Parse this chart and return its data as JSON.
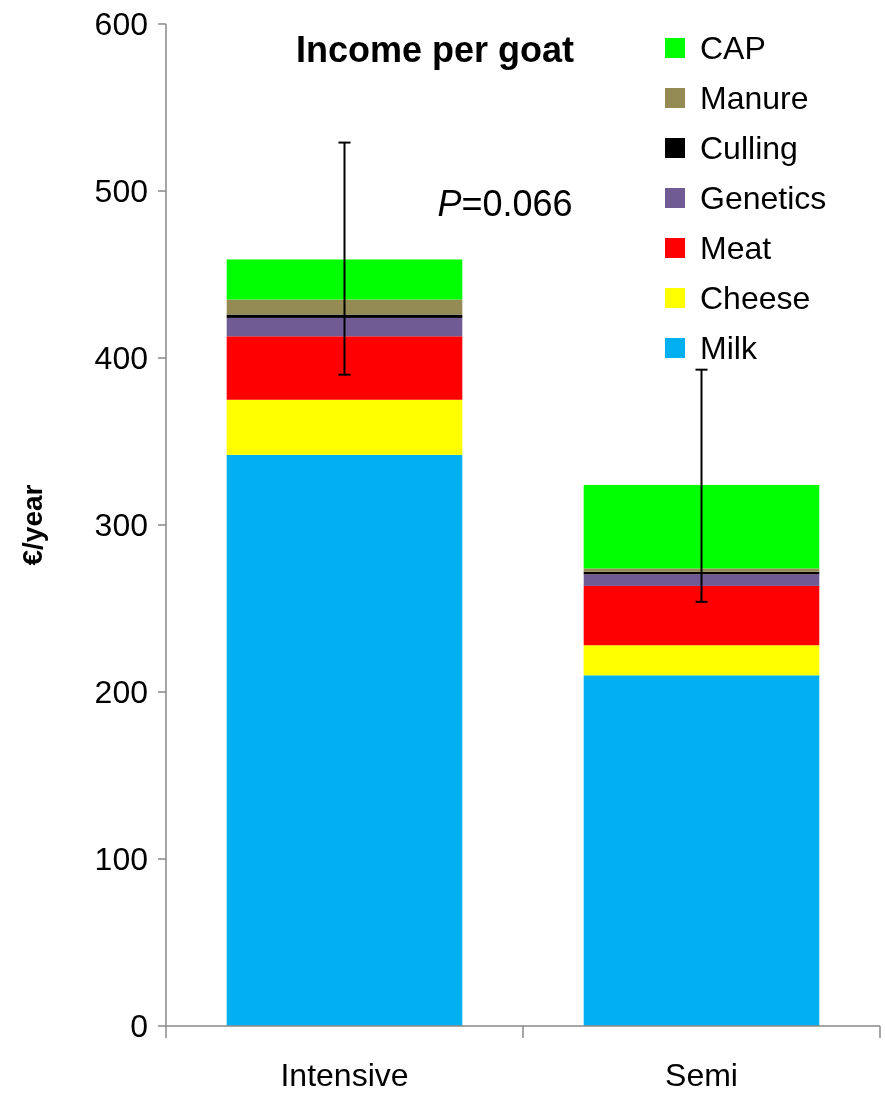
{
  "chart_data": {
    "type": "bar",
    "stacked": true,
    "title": "Income per goat",
    "ylabel": "€/year",
    "categories": [
      "Intensive",
      "Semi"
    ],
    "series": [
      {
        "name": "Milk",
        "color": "#00b0f0",
        "values": [
          342,
          210
        ]
      },
      {
        "name": "Cheese",
        "color": "#ffff00",
        "values": [
          33,
          18
        ]
      },
      {
        "name": "Meat",
        "color": "#ff0000",
        "values": [
          38,
          35.5
        ]
      },
      {
        "name": "Genetics",
        "color": "#715b95",
        "values": [
          11,
          7
        ]
      },
      {
        "name": "Culling",
        "color": "#000000",
        "values": [
          2,
          1.5
        ]
      },
      {
        "name": "Manure",
        "color": "#948a54",
        "values": [
          9,
          2
        ]
      },
      {
        "name": "CAP",
        "color": "#00ff00",
        "values": [
          24,
          50
        ],
        "errors": [
          [
            390,
            529
          ],
          [
            254,
            393
          ]
        ]
      }
    ],
    "ylim": [
      0,
      600
    ],
    "yticks": [
      0,
      100,
      200,
      300,
      400,
      500,
      600
    ],
    "legend": "top right",
    "annotations": [
      "P=0.066"
    ]
  }
}
